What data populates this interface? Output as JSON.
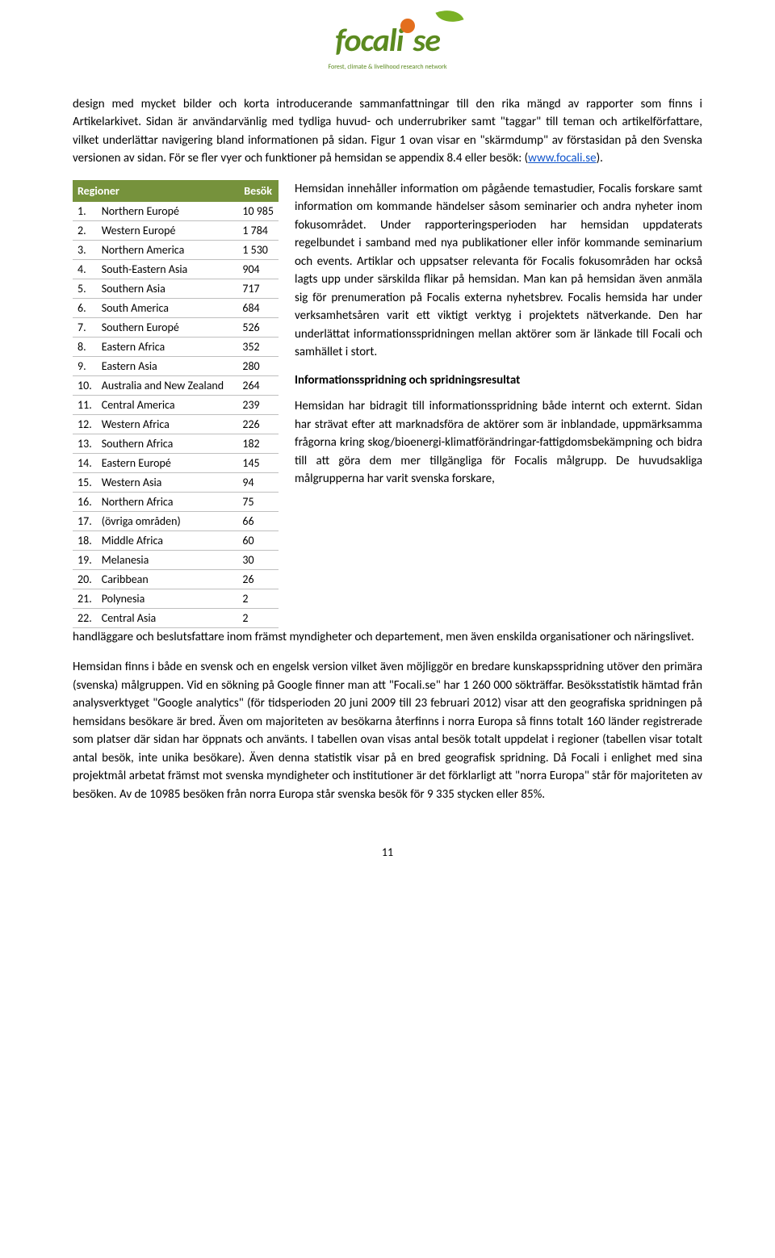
{
  "logo": {
    "text_left": "focali",
    "text_right": "se",
    "sub": "Forest, climate & livelihood research network"
  },
  "para1": "design med mycket bilder och korta introducerande sammanfattningar till den rika mängd av rapporter som finns i Artikelarkivet. Sidan är användarvänlig med tydliga huvud- och underrubriker samt \"taggar\" till teman och artikelförfattare, vilket underlättar navigering bland informationen på sidan. Figur 1 ovan visar en \"skärmdump\" av förstasidan på den Svenska versionen av sidan. För se fler vyer och funktioner på hemsidan se appendix 8.4 eller besök: (",
  "link_text": "www.focali.se",
  "para1_end": ").",
  "table": {
    "headers": [
      "Regioner",
      "Besök"
    ],
    "header_bg": "#76923c",
    "rows": [
      {
        "n": "1.",
        "region": "Northern Europé",
        "val": "10 985"
      },
      {
        "n": "2.",
        "region": "Western Europé",
        "val": "1 784"
      },
      {
        "n": "3.",
        "region": "Northern America",
        "val": "1 530"
      },
      {
        "n": "4.",
        "region": "South-Eastern Asia",
        "val": "904"
      },
      {
        "n": "5.",
        "region": "Southern Asia",
        "val": "717"
      },
      {
        "n": "6.",
        "region": "South America",
        "val": "684"
      },
      {
        "n": "7.",
        "region": "Southern Europé",
        "val": "526"
      },
      {
        "n": "8.",
        "region": "Eastern Africa",
        "val": "352"
      },
      {
        "n": "9.",
        "region": "Eastern Asia",
        "val": "280"
      },
      {
        "n": "10.",
        "region": "Australia and New Zealand",
        "val": "264"
      },
      {
        "n": "11.",
        "region": "Central America",
        "val": "239"
      },
      {
        "n": "12.",
        "region": "Western Africa",
        "val": "226"
      },
      {
        "n": "13.",
        "region": "Southern Africa",
        "val": "182"
      },
      {
        "n": "14.",
        "region": "Eastern Europé",
        "val": "145"
      },
      {
        "n": "15.",
        "region": "Western Asia",
        "val": "94"
      },
      {
        "n": "16.",
        "region": "Northern Africa",
        "val": "75"
      },
      {
        "n": "17.",
        "region": "(övriga områden)",
        "val": "66"
      },
      {
        "n": "18.",
        "region": "Middle Africa",
        "val": "60"
      },
      {
        "n": "19.",
        "region": "Melanesia",
        "val": "30"
      },
      {
        "n": "20.",
        "region": "Caribbean",
        "val": "26"
      },
      {
        "n": "21.",
        "region": "Polynesia",
        "val": "2"
      },
      {
        "n": "22.",
        "region": "Central Asia",
        "val": "2"
      }
    ]
  },
  "rcol": {
    "p1": "Hemsidan innehåller information om pågående temastudier, Focalis forskare samt information om kommande händelser såsom seminarier och andra nyheter inom fokusområdet. Under rapporteringsperioden har hemsidan uppdaterats regelbundet i samband med nya publikationer eller inför kommande seminarium och events. Artiklar och uppsatser relevanta för Focalis fokusområden har också lagts upp under särskilda flikar på hemsidan. Man kan på hemsidan även anmäla sig för prenumeration på Focalis externa nyhetsbrev. Focalis hemsida har under verksamhetsåren varit ett viktigt verktyg i projektets nätverkande. Den har underlättat informationsspridningen mellan aktörer som är länkade till Focali och samhället i stort.",
    "h1": "Informationsspridning och spridningsresultat",
    "p2": "Hemsidan har bidragit till informationsspridning både internt och externt. Sidan har strävat efter att marknadsföra de aktörer som är inblandade, uppmärksamma frågorna kring skog/bioenergi-klimatförändringar-fattigdomsbekämpning och bidra till att göra dem mer tillgängliga för Focalis målgrupp. De huvudsakliga målgrupperna har varit svenska forskare,"
  },
  "after_cols": "handläggare och beslutsfattare inom främst myndigheter och departement, men även enskilda organisationer och näringslivet.",
  "para3": "Hemsidan finns i både en svensk och en engelsk version vilket även möjliggör en bredare kunskapsspridning utöver den primära (svenska) målgruppen. Vid en sökning på Google finner man att \"Focali.se\" har 1 260 000 sökträffar. Besöksstatistik hämtad från analysverktyget \"Google analytics\" (för tidsperioden 20 juni 2009 till 23 februari 2012) visar att den geografiska spridningen på hemsidans besökare är bred. Även om majoriteten av besökarna återfinns i norra Europa så finns totalt 160 länder registrerade som platser där sidan har öppnats och använts. I tabellen ovan visas antal besök totalt uppdelat i regioner (tabellen visar totalt antal besök, inte unika besökare). Även denna statistik visar på en bred geografisk spridning. Då Focali i enlighet med sina projektmål arbetat främst mot svenska myndigheter och institutioner är det förklarligt att \"norra Europa\" står för majoriteten av besöken. Av de 10985 besöken från norra Europa står svenska besök för 9 335 stycken eller 85%.",
  "page_number": "11"
}
